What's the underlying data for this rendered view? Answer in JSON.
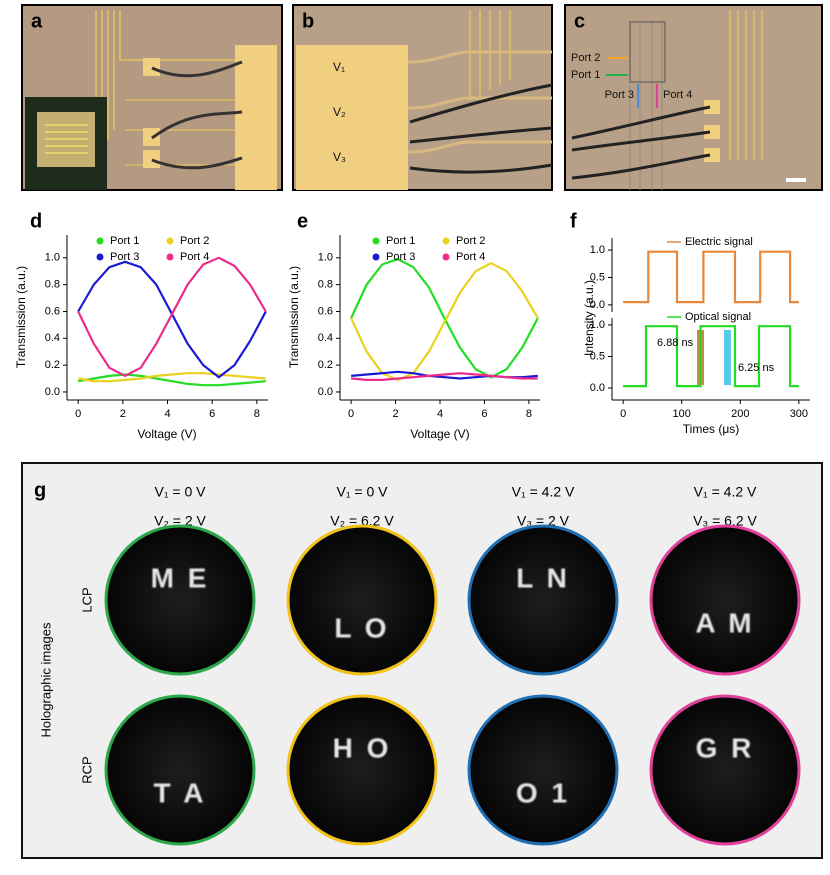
{
  "photos": [
    {
      "label": "a"
    },
    {
      "label": "b",
      "texts": [
        "V₁",
        "V₂",
        "V₃"
      ]
    },
    {
      "label": "c",
      "texts": [
        "Port 2",
        "Port 1",
        "Port 3",
        "Port 4"
      ]
    }
  ],
  "chart_data": [
    {
      "type": "line",
      "panel_label": "d",
      "xlabel": "Voltage (V)",
      "ylabel": "Transmission (a.u.)",
      "x": [
        0,
        0.7,
        1.4,
        2.1,
        2.8,
        3.5,
        4.2,
        4.9,
        5.6,
        6.3,
        7.0,
        7.7,
        8.4
      ],
      "xlim": [
        -0.5,
        8.5
      ],
      "xticks": [
        0,
        2,
        4,
        6,
        8
      ],
      "ylim": [
        -0.06,
        1.17
      ],
      "yticks": [
        {
          "value": 0,
          "label": "0.0"
        },
        0.2,
        0.4,
        0.6,
        0.8,
        {
          "value": 1,
          "label": "1.0"
        }
      ],
      "legend": "upper center",
      "legend_marker": "dot",
      "series": [
        {
          "name": "Port 1",
          "color": "#22dd22",
          "values": [
            0.08,
            0.1,
            0.12,
            0.13,
            0.12,
            0.1,
            0.08,
            0.06,
            0.05,
            0.05,
            0.06,
            0.07,
            0.08
          ]
        },
        {
          "name": "Port 2",
          "color": "#e8d21c",
          "values": [
            0.1,
            0.08,
            0.08,
            0.09,
            0.1,
            0.12,
            0.13,
            0.14,
            0.14,
            0.13,
            0.12,
            0.11,
            0.1
          ]
        },
        {
          "name": "Port 3",
          "color": "#1a1ad6",
          "values": [
            0.6,
            0.8,
            0.93,
            0.97,
            0.93,
            0.8,
            0.58,
            0.36,
            0.2,
            0.11,
            0.2,
            0.38,
            0.6
          ]
        },
        {
          "name": "Port 4",
          "color": "#ee2a8a",
          "values": [
            0.6,
            0.36,
            0.18,
            0.12,
            0.18,
            0.36,
            0.58,
            0.8,
            0.95,
            1.0,
            0.94,
            0.8,
            0.6
          ]
        }
      ]
    },
    {
      "type": "line",
      "panel_label": "e",
      "xlabel": "Voltage (V)",
      "ylabel": "Transmission (a.u.)",
      "x": [
        0,
        0.7,
        1.4,
        2.1,
        2.8,
        3.5,
        4.2,
        4.9,
        5.6,
        6.3,
        7.0,
        7.7,
        8.4
      ],
      "xlim": [
        -0.5,
        8.5
      ],
      "xticks": [
        0,
        2,
        4,
        6,
        8
      ],
      "ylim": [
        -0.06,
        1.17
      ],
      "yticks": [
        {
          "value": 0,
          "label": "0.0"
        },
        0.2,
        0.4,
        0.6,
        0.8,
        {
          "value": 1,
          "label": "1.0"
        }
      ],
      "legend": "upper center",
      "legend_marker": "dot",
      "series": [
        {
          "name": "Port 1",
          "color": "#22dd22",
          "values": [
            0.55,
            0.8,
            0.95,
            0.99,
            0.93,
            0.78,
            0.55,
            0.33,
            0.17,
            0.11,
            0.17,
            0.33,
            0.55
          ]
        },
        {
          "name": "Port 2",
          "color": "#e8d21c",
          "values": [
            0.55,
            0.3,
            0.14,
            0.09,
            0.14,
            0.3,
            0.52,
            0.74,
            0.9,
            0.96,
            0.9,
            0.75,
            0.55
          ]
        },
        {
          "name": "Port 3",
          "color": "#1a1ad6",
          "values": [
            0.12,
            0.13,
            0.14,
            0.15,
            0.14,
            0.12,
            0.11,
            0.1,
            0.11,
            0.12,
            0.11,
            0.11,
            0.12
          ]
        },
        {
          "name": "Port 4",
          "color": "#ee2a8a",
          "values": [
            0.1,
            0.09,
            0.09,
            0.1,
            0.11,
            0.12,
            0.13,
            0.14,
            0.13,
            0.12,
            0.11,
            0.1,
            0.1
          ]
        }
      ]
    },
    {
      "type": "line",
      "panel_label": "f",
      "ylabel": "Intensity (a.u.)",
      "x": [
        0,
        43,
        43,
        92,
        92,
        137,
        137,
        191,
        191,
        234,
        234,
        285,
        285,
        300
      ],
      "xlim": [
        -19,
        319
      ],
      "ylim": [
        -0.13,
        1.22
      ],
      "yticks": [
        {
          "value": 0,
          "label": "0.0"
        },
        0.5,
        {
          "value": 1,
          "label": "1.0"
        }
      ],
      "legend": "upper right",
      "legend_marker": "line",
      "series": [
        {
          "name": "Electric signal",
          "color": "#e8883a",
          "values": [
            0.05,
            0.05,
            0.97,
            0.97,
            0.05,
            0.05,
            0.97,
            0.97,
            0.05,
            0.05,
            0.97,
            0.97,
            0.05,
            0.05
          ]
        }
      ]
    },
    {
      "type": "line",
      "xlabel": "Times (μs)",
      "x": [
        0,
        39,
        39,
        92,
        92,
        132,
        132,
        191,
        191,
        232,
        232,
        285,
        285,
        300
      ],
      "xlim": [
        -19,
        319
      ],
      "xticks": [
        0,
        100,
        200,
        300
      ],
      "ylim": [
        -0.19,
        1.11
      ],
      "yticks": [
        {
          "value": 0,
          "label": "0.0"
        },
        0.5,
        {
          "value": 1,
          "label": "1.0"
        }
      ],
      "legend": "upper right",
      "legend_marker": "line",
      "annotations": [
        "6.88 ns",
        "6.25 ns"
      ],
      "series": [
        {
          "name": "Optical signal",
          "color": "#22dd22",
          "values": [
            0.03,
            0.03,
            0.98,
            0.98,
            0.03,
            0.03,
            0.98,
            0.98,
            0.03,
            0.03,
            0.98,
            0.98,
            0.03,
            0.03
          ]
        }
      ]
    }
  ],
  "holography": {
    "label": "g",
    "ylabel": "Holographic images",
    "rows": [
      "LCP",
      "RCP"
    ],
    "columns": [
      {
        "line1": "V₁ = 0 V",
        "line2": "V₂ = 2 V",
        "color": "#2aa84a",
        "images": [
          "M E",
          "T A"
        ]
      },
      {
        "line1": "V₁ = 0 V",
        "line2": "V₂ = 6.2 V",
        "color": "#f2c21b",
        "images": [
          "L O",
          "H O"
        ]
      },
      {
        "line1": "V₁ = 4.2 V",
        "line2": "V₃ = 2 V",
        "color": "#1f6fb5",
        "images": [
          "L N",
          "O 1"
        ]
      },
      {
        "line1": "V₁ = 4.2 V",
        "line2": "V₃ = 6.2 V",
        "color": "#e0409a",
        "images": [
          "A M",
          "G R"
        ]
      }
    ]
  }
}
